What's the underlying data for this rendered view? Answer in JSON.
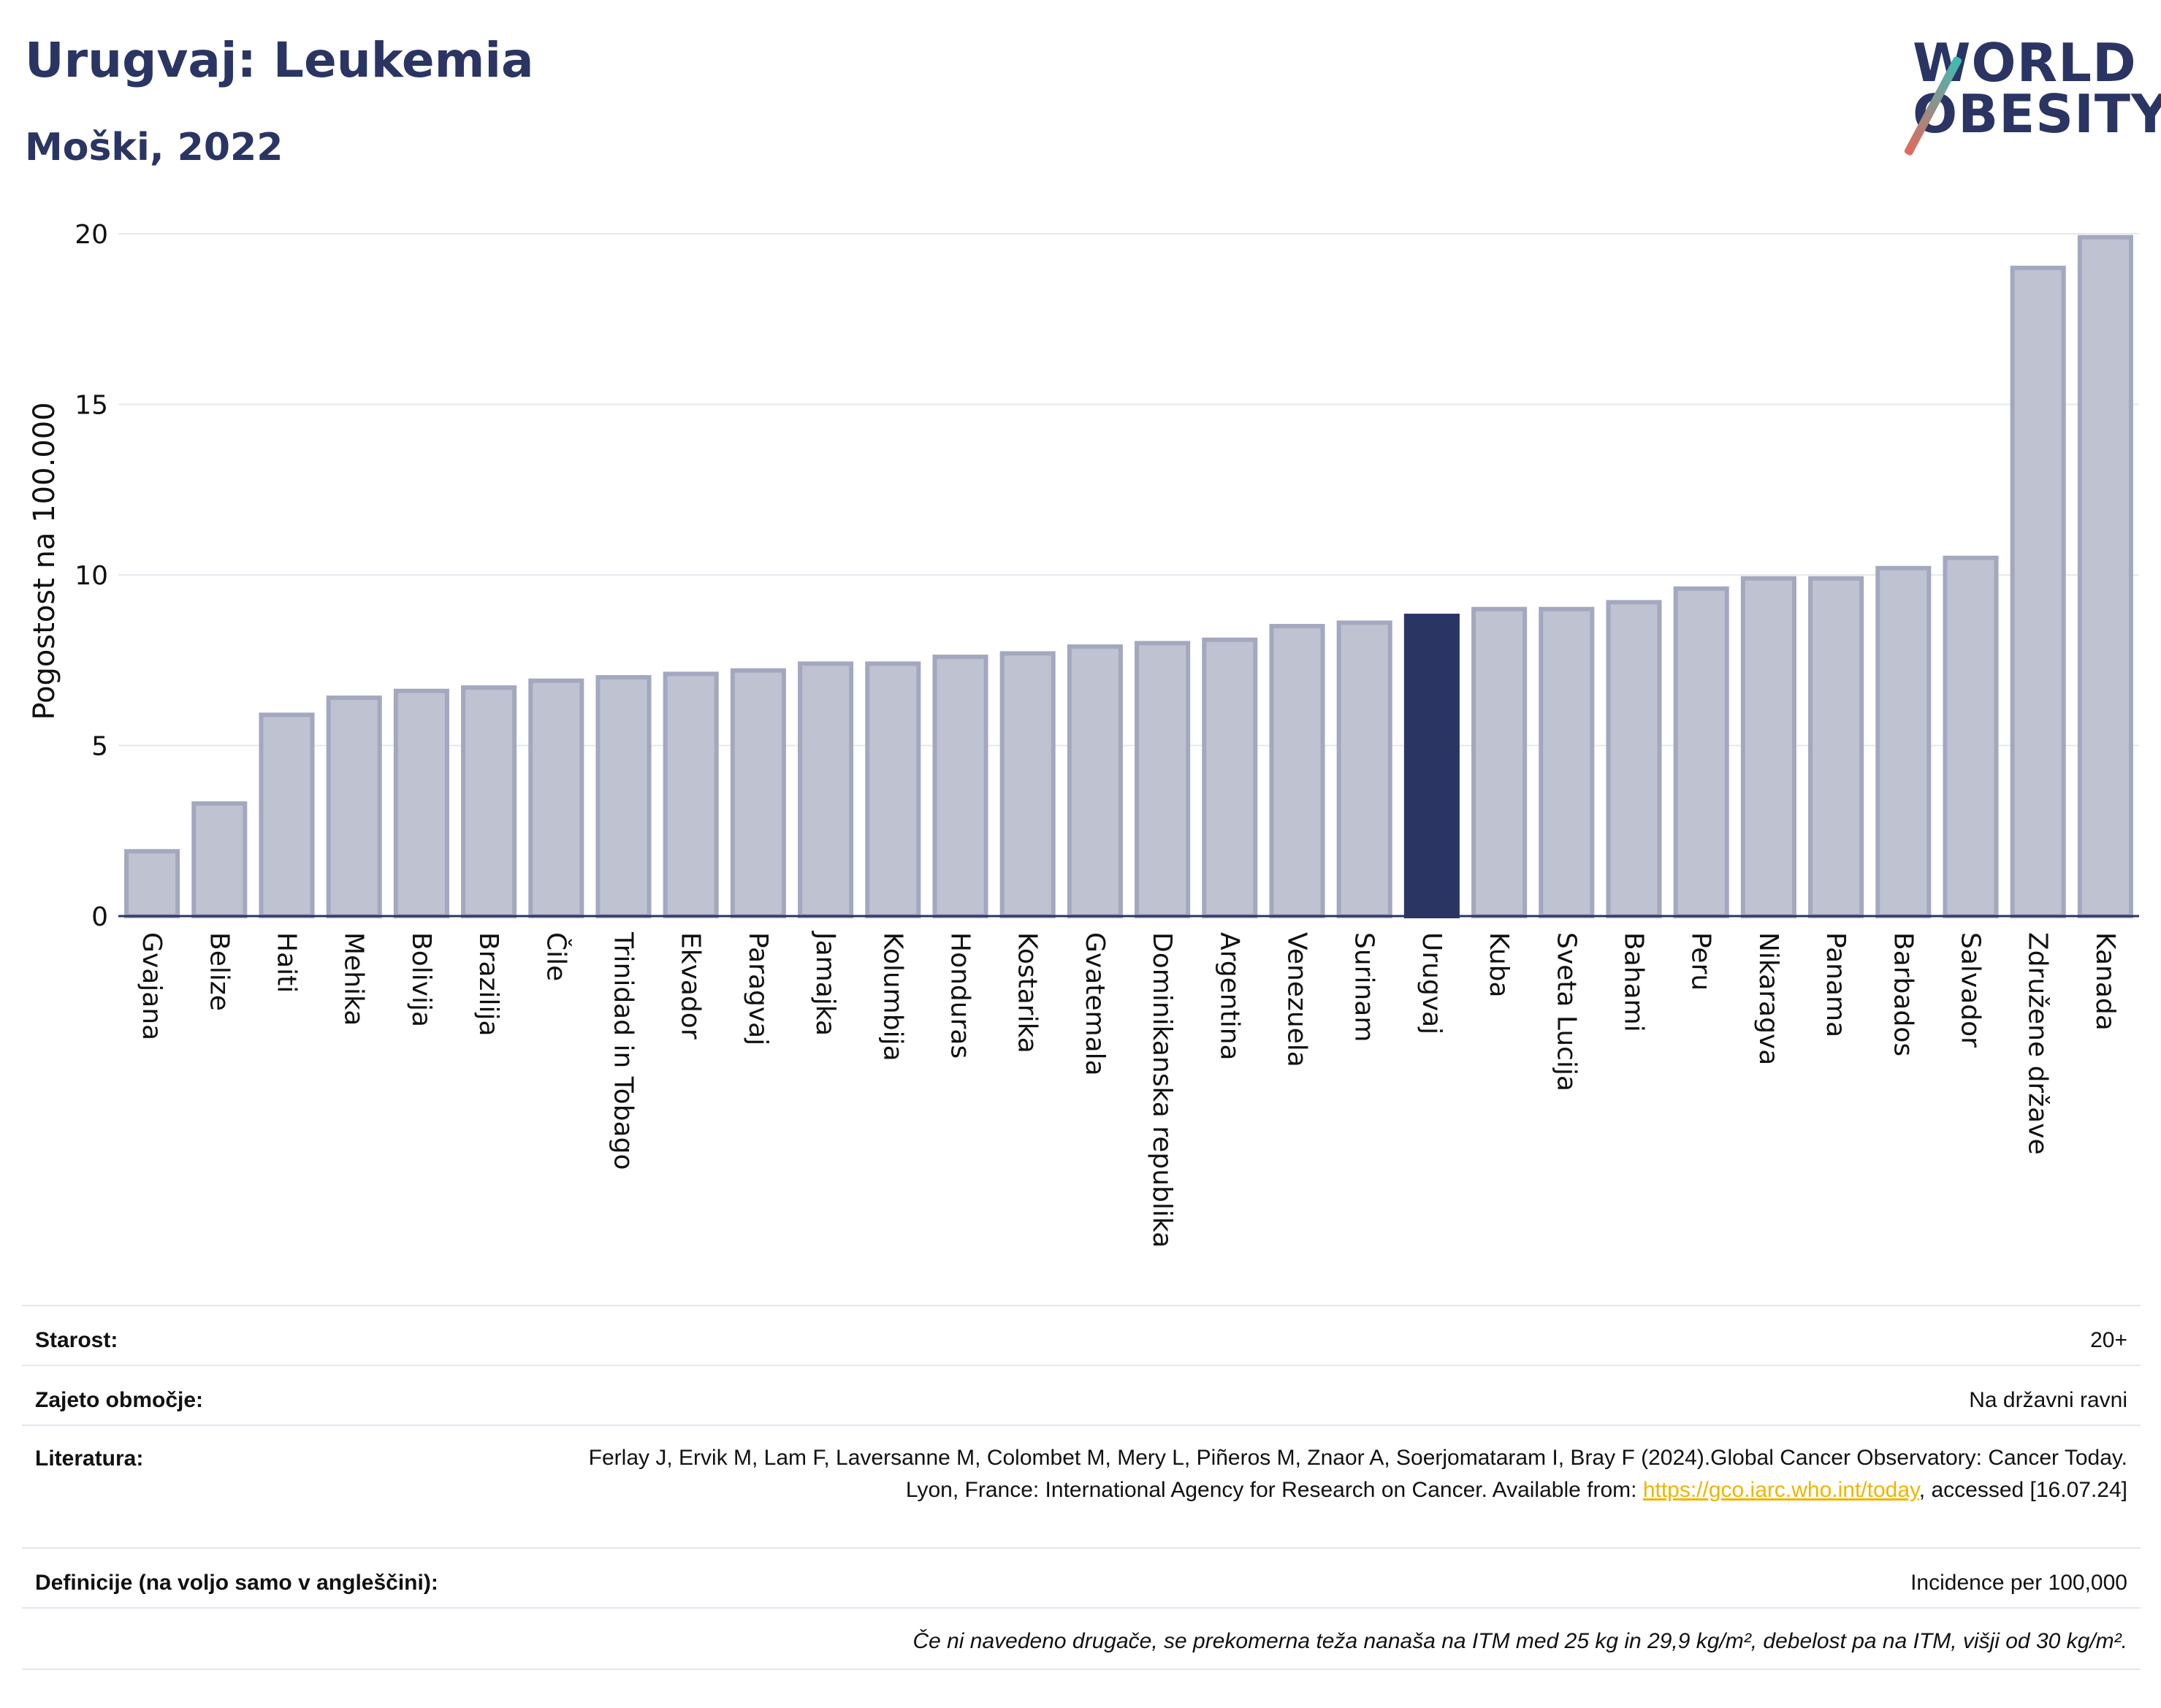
{
  "header": {
    "title": "Urugvaj: Leukemia",
    "subtitle": "Moški, 2022"
  },
  "logo": {
    "line1": "WORLD",
    "line2": "OBESITY"
  },
  "chart_data": {
    "type": "bar",
    "ylabel": "Pogostost na 100.000",
    "ylim": [
      0,
      20
    ],
    "yticks": [
      "0",
      "5",
      "10",
      "15",
      "20"
    ],
    "ytick_values": [
      0,
      5,
      10,
      15,
      20
    ],
    "grid": true,
    "categories": [
      "Gvajana",
      "Belize",
      "Haiti",
      "Mehika",
      "Bolivija",
      "Brazilija",
      "Čile",
      "Trinidad in Tobago",
      "Ekvador",
      "Paragvaj",
      "Jamajka",
      "Kolumbija",
      "Honduras",
      "Kostarika",
      "Gvatemala",
      "Dominikanska republika",
      "Argentina",
      "Venezuela",
      "Surinam",
      "Urugvaj",
      "Kuba",
      "Sveta Lucija",
      "Bahami",
      "Peru",
      "Nikaragva",
      "Panama",
      "Barbados",
      "Salvador",
      "Združene države",
      "Kanada"
    ],
    "values": [
      1.9,
      3.3,
      5.9,
      6.4,
      6.6,
      6.7,
      6.9,
      7.0,
      7.1,
      7.2,
      7.4,
      7.4,
      7.6,
      7.7,
      7.9,
      8.0,
      8.1,
      8.5,
      8.6,
      8.8,
      9.0,
      9.0,
      9.2,
      9.6,
      9.9,
      9.9,
      10.2,
      10.5,
      19.0,
      19.9
    ],
    "highlight": "Urugvaj",
    "colors": {
      "bar": "#bfc2d1",
      "bar_stroke": "#a3a8bf",
      "highlight": "#2a3563"
    }
  },
  "info": {
    "age_label": "Starost:",
    "age_value": "20+",
    "coverage_label": "Zajeto območje:",
    "coverage_value": "Na državni ravni",
    "literature_label": "Literatura:",
    "literature_text1": "Ferlay J, Ervik M, Lam F, Laversanne M, Colombet M, Mery L, Piñeros M, Znaor A, Soerjomataram I, Bray F (2024).Global Cancer Observatory: Cancer Today. Lyon, France: International Agency for Research on Cancer. Available from: ",
    "literature_link": "https://gco.iarc.who.int/today",
    "literature_text2": ", accessed [16.07.24]",
    "definitions_label": "Definicije (na voljo samo v angleščini):",
    "definitions_value": "Incidence per 100,000",
    "note": "Če ni navedeno drugače, se prekomerna teža nanaša na ITM med 25 kg in 29,9 kg/m², debelost pa na ITM, višji od 30 kg/m²."
  }
}
